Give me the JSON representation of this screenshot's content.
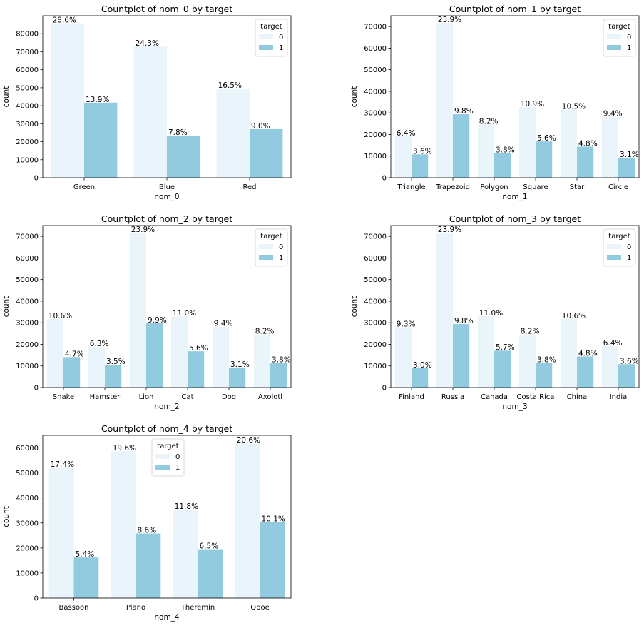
{
  "chart_data": [
    {
      "type": "bar",
      "title": "Countplot of nom_0 by target",
      "xlabel": "nom_0",
      "ylabel": "count",
      "categories": [
        "Green",
        "Blue",
        "Red"
      ],
      "ylim": [
        0,
        90000
      ],
      "yticks": [
        0,
        10000,
        20000,
        30000,
        40000,
        50000,
        60000,
        70000,
        80000
      ],
      "legend": {
        "title": "target",
        "position": "top-right"
      },
      "series": [
        {
          "name": "0",
          "color": "#eaf4fb",
          "values": [
            85800,
            72900,
            49500
          ],
          "labels": [
            "28.6%",
            "24.3%",
            "16.5%"
          ]
        },
        {
          "name": "1",
          "color": "#92cbe0",
          "values": [
            41700,
            23400,
            27000
          ],
          "labels": [
            "13.9%",
            "7.8%",
            "9.0%"
          ]
        }
      ]
    },
    {
      "type": "bar",
      "title": "Countplot of nom_1 by target",
      "xlabel": "nom_1",
      "ylabel": "count",
      "categories": [
        "Triangle",
        "Trapezoid",
        "Polygon",
        "Square",
        "Star",
        "Circle"
      ],
      "ylim": [
        0,
        75000
      ],
      "yticks": [
        0,
        10000,
        20000,
        30000,
        40000,
        50000,
        60000,
        70000
      ],
      "legend": {
        "title": "target",
        "position": "top-right"
      },
      "series": [
        {
          "name": "0",
          "color": "#eaf4fb",
          "values": [
            19200,
            71700,
            24600,
            32700,
            31500,
            28200
          ],
          "labels": [
            "6.4%",
            "23.9%",
            "8.2%",
            "10.9%",
            "10.5%",
            "9.4%"
          ]
        },
        {
          "name": "1",
          "color": "#92cbe0",
          "values": [
            10800,
            29400,
            11400,
            16800,
            14400,
            9300
          ],
          "labels": [
            "3.6%",
            "9.8%",
            "3.8%",
            "5.6%",
            "4.8%",
            "3.1%"
          ]
        }
      ]
    },
    {
      "type": "bar",
      "title": "Countplot of nom_2 by target",
      "xlabel": "nom_2",
      "ylabel": "count",
      "categories": [
        "Snake",
        "Hamster",
        "Lion",
        "Cat",
        "Dog",
        "Axolotl"
      ],
      "ylim": [
        0,
        75000
      ],
      "yticks": [
        0,
        10000,
        20000,
        30000,
        40000,
        50000,
        60000,
        70000
      ],
      "legend": {
        "title": "target",
        "position": "top-right"
      },
      "series": [
        {
          "name": "0",
          "color": "#eaf4fb",
          "values": [
            31800,
            18900,
            71700,
            33000,
            28200,
            24600
          ],
          "labels": [
            "10.6%",
            "6.3%",
            "23.9%",
            "11.0%",
            "9.4%",
            "8.2%"
          ]
        },
        {
          "name": "1",
          "color": "#92cbe0",
          "values": [
            14100,
            10500,
            29700,
            16800,
            9300,
            11400
          ],
          "labels": [
            "4.7%",
            "3.5%",
            "9.9%",
            "5.6%",
            "3.1%",
            "3.8%"
          ]
        }
      ]
    },
    {
      "type": "bar",
      "title": "Countplot of nom_3 by target",
      "xlabel": "nom_3",
      "ylabel": "count",
      "categories": [
        "Finland",
        "Russia",
        "Canada",
        "Costa Rica",
        "China",
        "India"
      ],
      "ylim": [
        0,
        75000
      ],
      "yticks": [
        0,
        10000,
        20000,
        30000,
        40000,
        50000,
        60000,
        70000
      ],
      "legend": {
        "title": "target",
        "position": "top-right"
      },
      "series": [
        {
          "name": "0",
          "color": "#eaf4fb",
          "values": [
            27900,
            71700,
            33000,
            24600,
            31800,
            19200
          ],
          "labels": [
            "9.3%",
            "23.9%",
            "11.0%",
            "8.2%",
            "10.6%",
            "6.4%"
          ]
        },
        {
          "name": "1",
          "color": "#92cbe0",
          "values": [
            9000,
            29400,
            17100,
            11400,
            14400,
            10800
          ],
          "labels": [
            "3.0%",
            "9.8%",
            "5.7%",
            "3.8%",
            "4.8%",
            "3.6%"
          ]
        }
      ]
    },
    {
      "type": "bar",
      "title": "Countplot of nom_4 by target",
      "xlabel": "nom_4",
      "ylabel": "count",
      "categories": [
        "Bassoon",
        "Piano",
        "Theremin",
        "Oboe"
      ],
      "ylim": [
        0,
        65000
      ],
      "yticks": [
        0,
        10000,
        20000,
        30000,
        40000,
        50000,
        60000
      ],
      "legend": {
        "title": "target",
        "position": "top-center"
      },
      "series": [
        {
          "name": "0",
          "color": "#eaf4fb",
          "values": [
            52200,
            58800,
            35400,
            61800
          ],
          "labels": [
            "17.4%",
            "19.6%",
            "11.8%",
            "20.6%"
          ]
        },
        {
          "name": "1",
          "color": "#92cbe0",
          "values": [
            16200,
            25800,
            19500,
            30300
          ],
          "labels": [
            "5.4%",
            "8.6%",
            "6.5%",
            "10.1%"
          ]
        }
      ]
    }
  ]
}
